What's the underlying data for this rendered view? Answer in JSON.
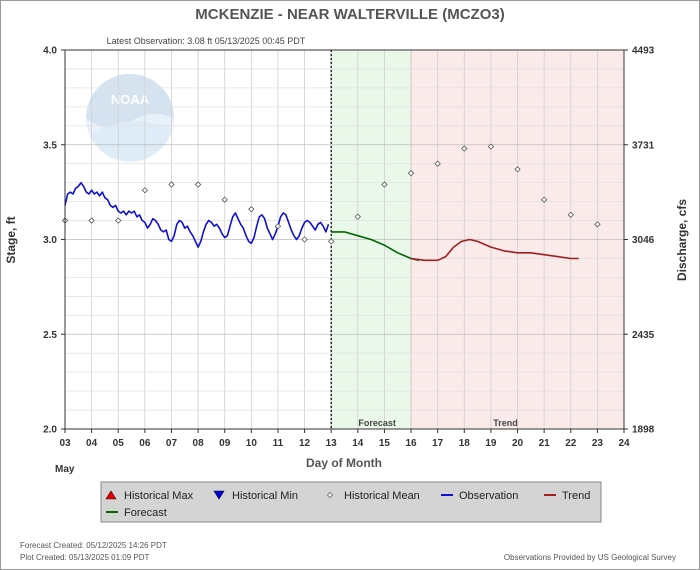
{
  "chart_data": {
    "type": "line",
    "title": "MCKENZIE - NEAR WALTERVILLE  (MCZO3)",
    "subtitle": "Latest Observation: 3.08 ft 05/13/2025 00:45 PDT",
    "xlabel": "Day of Month",
    "x_month_label": "May",
    "ylabel_left": "Stage, ft",
    "ylabel_right": "Discharge, cfs",
    "xlim": [
      3,
      24
    ],
    "ylim": [
      2.0,
      4.0
    ],
    "x_ticks": [
      3,
      4,
      5,
      6,
      7,
      8,
      9,
      10,
      11,
      12,
      13,
      14,
      15,
      16,
      17,
      18,
      19,
      20,
      21,
      22,
      23,
      24
    ],
    "x_tick_labels": [
      "03",
      "04",
      "05",
      "06",
      "07",
      "08",
      "09",
      "10",
      "11",
      "12",
      "13",
      "14",
      "15",
      "16",
      "17",
      "18",
      "19",
      "20",
      "21",
      "22",
      "23",
      "24"
    ],
    "y_ticks_left": [
      2.0,
      2.5,
      3.0,
      3.5,
      4.0
    ],
    "y_tick_labels_left": [
      "2.0",
      "2.5",
      "3.0",
      "3.5",
      "4.0"
    ],
    "y_ticks_right_stage": [
      2.0,
      2.5,
      3.0,
      3.5,
      4.0
    ],
    "y_tick_labels_right": [
      "1898",
      "2435",
      "3046",
      "3731",
      "4493"
    ],
    "grid": true,
    "logo_text": "NOAA",
    "regions": [
      {
        "label": "Forecast",
        "x_start": 13.0,
        "x_end": 16.0,
        "color": "#e9f8e9",
        "edge": "#8fd08f"
      },
      {
        "label": "Trend",
        "x_start": 16.0,
        "x_end": 24.0,
        "color": "#fbeaea",
        "edge": "#e8b0b0"
      }
    ],
    "current_time_x": 13.0,
    "series": [
      {
        "name": "Observation",
        "color": "#1010d0",
        "points": [
          [
            3.0,
            3.18
          ],
          [
            3.1,
            3.24
          ],
          [
            3.2,
            3.25
          ],
          [
            3.3,
            3.24
          ],
          [
            3.4,
            3.27
          ],
          [
            3.5,
            3.28
          ],
          [
            3.6,
            3.3
          ],
          [
            3.7,
            3.28
          ],
          [
            3.8,
            3.25
          ],
          [
            3.9,
            3.24
          ],
          [
            4.0,
            3.26
          ],
          [
            4.1,
            3.24
          ],
          [
            4.2,
            3.25
          ],
          [
            4.3,
            3.23
          ],
          [
            4.4,
            3.25
          ],
          [
            4.5,
            3.22
          ],
          [
            4.6,
            3.21
          ],
          [
            4.7,
            3.18
          ],
          [
            4.8,
            3.17
          ],
          [
            4.9,
            3.18
          ],
          [
            5.0,
            3.15
          ],
          [
            5.1,
            3.14
          ],
          [
            5.2,
            3.15
          ],
          [
            5.3,
            3.13
          ],
          [
            5.4,
            3.15
          ],
          [
            5.5,
            3.14
          ],
          [
            5.6,
            3.15
          ],
          [
            5.7,
            3.12
          ],
          [
            5.8,
            3.13
          ],
          [
            5.9,
            3.1
          ],
          [
            6.0,
            3.09
          ],
          [
            6.1,
            3.06
          ],
          [
            6.2,
            3.08
          ],
          [
            6.3,
            3.11
          ],
          [
            6.4,
            3.1
          ],
          [
            6.5,
            3.08
          ],
          [
            6.6,
            3.05
          ],
          [
            6.7,
            3.04
          ],
          [
            6.8,
            3.05
          ],
          [
            6.9,
            3.0
          ],
          [
            7.0,
            2.99
          ],
          [
            7.1,
            3.02
          ],
          [
            7.2,
            3.08
          ],
          [
            7.3,
            3.1
          ],
          [
            7.4,
            3.09
          ],
          [
            7.5,
            3.06
          ],
          [
            7.6,
            3.07
          ],
          [
            7.7,
            3.04
          ],
          [
            7.8,
            3.02
          ],
          [
            7.9,
            2.99
          ],
          [
            8.0,
            2.96
          ],
          [
            8.1,
            2.99
          ],
          [
            8.2,
            3.04
          ],
          [
            8.3,
            3.08
          ],
          [
            8.4,
            3.1
          ],
          [
            8.5,
            3.09
          ],
          [
            8.6,
            3.07
          ],
          [
            8.7,
            3.08
          ],
          [
            8.8,
            3.06
          ],
          [
            8.9,
            3.03
          ],
          [
            9.0,
            3.01
          ],
          [
            9.1,
            3.02
          ],
          [
            9.2,
            3.07
          ],
          [
            9.3,
            3.12
          ],
          [
            9.4,
            3.14
          ],
          [
            9.5,
            3.11
          ],
          [
            9.6,
            3.08
          ],
          [
            9.7,
            3.06
          ],
          [
            9.8,
            3.02
          ],
          [
            9.9,
            2.99
          ],
          [
            10.0,
            2.98
          ],
          [
            10.1,
            3.01
          ],
          [
            10.2,
            3.07
          ],
          [
            10.3,
            3.12
          ],
          [
            10.4,
            3.13
          ],
          [
            10.5,
            3.11
          ],
          [
            10.6,
            3.06
          ],
          [
            10.7,
            3.03
          ],
          [
            10.8,
            3.0
          ],
          [
            10.9,
            3.03
          ],
          [
            11.0,
            3.07
          ],
          [
            11.1,
            3.12
          ],
          [
            11.2,
            3.14
          ],
          [
            11.3,
            3.13
          ],
          [
            11.4,
            3.09
          ],
          [
            11.5,
            3.05
          ],
          [
            11.6,
            3.02
          ],
          [
            11.7,
            3.0
          ],
          [
            11.8,
            3.02
          ],
          [
            11.9,
            3.06
          ],
          [
            12.0,
            3.09
          ],
          [
            12.1,
            3.1
          ],
          [
            12.2,
            3.09
          ],
          [
            12.3,
            3.07
          ],
          [
            12.4,
            3.05
          ],
          [
            12.5,
            3.08
          ],
          [
            12.6,
            3.09
          ],
          [
            12.7,
            3.07
          ],
          [
            12.8,
            3.04
          ],
          [
            12.9,
            3.08
          ]
        ]
      },
      {
        "name": "Forecast",
        "color": "#006600",
        "points": [
          [
            13.0,
            3.04
          ],
          [
            13.5,
            3.04
          ],
          [
            14.0,
            3.02
          ],
          [
            14.5,
            3.0
          ],
          [
            15.0,
            2.97
          ],
          [
            15.5,
            2.93
          ],
          [
            16.0,
            2.9
          ],
          [
            16.3,
            2.89
          ]
        ]
      },
      {
        "name": "Trend",
        "color": "#a02020",
        "points": [
          [
            16.0,
            2.9
          ],
          [
            16.5,
            2.89
          ],
          [
            17.0,
            2.89
          ],
          [
            17.3,
            2.91
          ],
          [
            17.6,
            2.96
          ],
          [
            17.9,
            2.99
          ],
          [
            18.2,
            3.0
          ],
          [
            18.5,
            2.99
          ],
          [
            19.0,
            2.96
          ],
          [
            19.5,
            2.94
          ],
          [
            20.0,
            2.93
          ],
          [
            20.5,
            2.93
          ],
          [
            21.0,
            2.92
          ],
          [
            21.5,
            2.91
          ],
          [
            22.0,
            2.9
          ],
          [
            22.3,
            2.9
          ]
        ]
      }
    ],
    "historical_mean": {
      "name": "Historical Mean",
      "points": [
        [
          3.0,
          3.1
        ],
        [
          4.0,
          3.1
        ],
        [
          5.0,
          3.1
        ],
        [
          6.0,
          3.26
        ],
        [
          7.0,
          3.29
        ],
        [
          8.0,
          3.29
        ],
        [
          9.0,
          3.21
        ],
        [
          10.0,
          3.16
        ],
        [
          11.0,
          3.07
        ],
        [
          12.0,
          3.0
        ],
        [
          13.0,
          2.99
        ],
        [
          14.0,
          3.12
        ],
        [
          15.0,
          3.29
        ],
        [
          16.0,
          3.35
        ],
        [
          17.0,
          3.4
        ],
        [
          18.0,
          3.48
        ],
        [
          19.0,
          3.49
        ],
        [
          20.0,
          3.37
        ],
        [
          21.0,
          3.21
        ],
        [
          22.0,
          3.13
        ],
        [
          23.0,
          3.08
        ]
      ]
    },
    "legend": [
      {
        "label": "Historical Max",
        "symbol": "triangle-up",
        "color": "#e00000"
      },
      {
        "label": "Historical Min",
        "symbol": "triangle-down",
        "color": "#0000d0"
      },
      {
        "label": "Historical Mean",
        "symbol": "diamond",
        "color": "#666666"
      },
      {
        "label": "Observation",
        "symbol": "line",
        "color": "#1010d0"
      },
      {
        "label": "Trend",
        "symbol": "line",
        "color": "#a02020"
      },
      {
        "label": "Forecast",
        "symbol": "line",
        "color": "#006600"
      }
    ]
  },
  "footer": {
    "forecast_created": "Forecast Created: 05/12/2025 14:26 PDT",
    "plot_created": "Plot Created: 05/13/2025 01:09 PDT",
    "credit": "Observations Provided by US Geological Survey"
  }
}
